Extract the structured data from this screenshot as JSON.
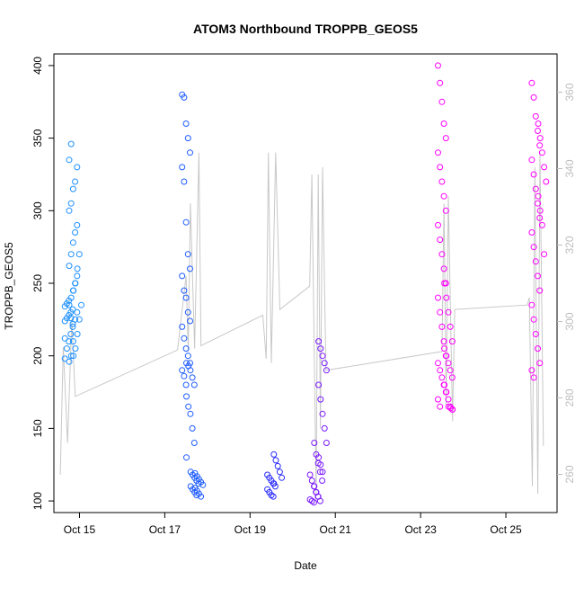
{
  "chart_data": {
    "type": "scatter",
    "title": "ATOM3 Northbound TROPPB_GEOS5",
    "xlabel": "Date",
    "ylabel": "TROPPB_GEOS5",
    "x_ticks": [
      "Oct 15",
      "Oct 17",
      "Oct 19",
      "Oct 21",
      "Oct 23",
      "Oct 25"
    ],
    "y_ticks": [
      100,
      150,
      200,
      250,
      300,
      350,
      400
    ],
    "y_right_ticks": [
      260,
      280,
      300,
      320,
      340,
      360
    ],
    "xlim_days": [
      14.4,
      26.2
    ],
    "ylim": [
      92,
      408
    ],
    "y_right_lim": [
      250,
      370
    ],
    "grid": false,
    "colors": {
      "line": "#c8c8c8",
      "axis": "#000000",
      "right_axis": "#bdbdbd",
      "cluster1": "#1e90ff",
      "cluster2": "#1f5cff",
      "cluster3": "#2a2aff",
      "cluster4": "#7a18ff",
      "cluster5": "#ff00ff"
    },
    "series_points": [
      {
        "day": 14.75,
        "values": [
          198,
          205,
          210,
          215,
          222,
          224,
          226,
          228,
          230,
          232,
          234,
          236,
          238,
          226,
          220,
          212
        ]
      },
      {
        "day": 14.85,
        "values": [
          196,
          200,
          210,
          225,
          230,
          235,
          240,
          245,
          250,
          255,
          262,
          270,
          278,
          285,
          290,
          300,
          305,
          315,
          320,
          330,
          335,
          346
        ]
      },
      {
        "day": 14.95,
        "values": [
          200,
          205,
          215,
          225,
          235,
          245,
          250,
          260,
          270
        ]
      },
      {
        "day": 17.5,
        "values": [
          380,
          378,
          360,
          350,
          340,
          330,
          320,
          292,
          270,
          260,
          255,
          245,
          240,
          230,
          224,
          220,
          212,
          205,
          200,
          195,
          190,
          186,
          180
        ]
      },
      {
        "day": 17.6,
        "values": [
          195,
          193,
          190,
          185,
          180,
          172,
          165,
          160,
          150,
          140,
          130
        ]
      },
      {
        "day": 17.7,
        "values": [
          120,
          118,
          116,
          114,
          112,
          110,
          108,
          106,
          104
        ]
      },
      {
        "day": 17.8,
        "values": [
          119,
          117,
          115,
          113,
          111,
          109,
          107,
          105,
          103
        ]
      },
      {
        "day": 19.5,
        "values": [
          118,
          116,
          114,
          112,
          110,
          108,
          106,
          104,
          103
        ]
      },
      {
        "day": 19.65,
        "values": [
          132,
          128,
          124,
          120,
          116,
          112
        ]
      },
      {
        "day": 20.5,
        "values": [
          118,
          114,
          110,
          106,
          103,
          101,
          100,
          99
        ]
      },
      {
        "day": 20.6,
        "values": [
          140,
          132,
          126,
          120,
          114,
          110,
          106,
          103,
          100
        ]
      },
      {
        "day": 20.7,
        "values": [
          210,
          205,
          200,
          195,
          190,
          180,
          170,
          160,
          150,
          140,
          130,
          125,
          120
        ]
      },
      {
        "day": 23.5,
        "values": [
          400,
          388,
          375,
          360,
          350,
          340,
          330,
          320,
          310,
          300,
          290,
          280,
          270,
          260,
          250,
          240,
          230,
          220,
          210,
          200,
          195,
          190,
          185,
          180,
          175,
          170,
          165
        ]
      },
      {
        "day": 23.65,
        "values": [
          250,
          240,
          230,
          220,
          210,
          205,
          200,
          195,
          190,
          185,
          180,
          175,
          170,
          165,
          163
        ]
      },
      {
        "day": 23.75,
        "values": [
          165,
          164,
          163
        ]
      },
      {
        "day": 25.7,
        "values": [
          388,
          378,
          365,
          355,
          345,
          335,
          325,
          315,
          305,
          295,
          285,
          275,
          265,
          255,
          245,
          235,
          225,
          215,
          205,
          195,
          190,
          185
        ]
      },
      {
        "day": 25.85,
        "values": [
          360,
          350,
          340,
          330,
          320,
          310,
          300,
          290,
          270
        ]
      }
    ],
    "line_points": [
      [
        14.55,
        118
      ],
      [
        14.62,
        206
      ],
      [
        14.72,
        140
      ],
      [
        14.82,
        225
      ],
      [
        14.9,
        172
      ],
      [
        17.3,
        204
      ],
      [
        17.5,
        255
      ],
      [
        17.55,
        203
      ],
      [
        17.6,
        305
      ],
      [
        17.7,
        205
      ],
      [
        17.8,
        340
      ],
      [
        17.85,
        207
      ],
      [
        19.3,
        228
      ],
      [
        19.38,
        198
      ],
      [
        19.43,
        340
      ],
      [
        19.5,
        195
      ],
      [
        19.6,
        340
      ],
      [
        19.7,
        232
      ],
      [
        20.4,
        248
      ],
      [
        20.45,
        325
      ],
      [
        20.55,
        105
      ],
      [
        20.6,
        325
      ],
      [
        20.65,
        150
      ],
      [
        20.7,
        330
      ],
      [
        20.78,
        190
      ],
      [
        23.5,
        203
      ],
      [
        23.55,
        305
      ],
      [
        23.6,
        165
      ],
      [
        23.65,
        310
      ],
      [
        23.75,
        155
      ],
      [
        23.8,
        232
      ],
      [
        25.5,
        235
      ],
      [
        25.55,
        240
      ],
      [
        25.62,
        110
      ],
      [
        25.68,
        330
      ],
      [
        25.75,
        105
      ],
      [
        25.8,
        340
      ],
      [
        25.88,
        138
      ]
    ]
  }
}
